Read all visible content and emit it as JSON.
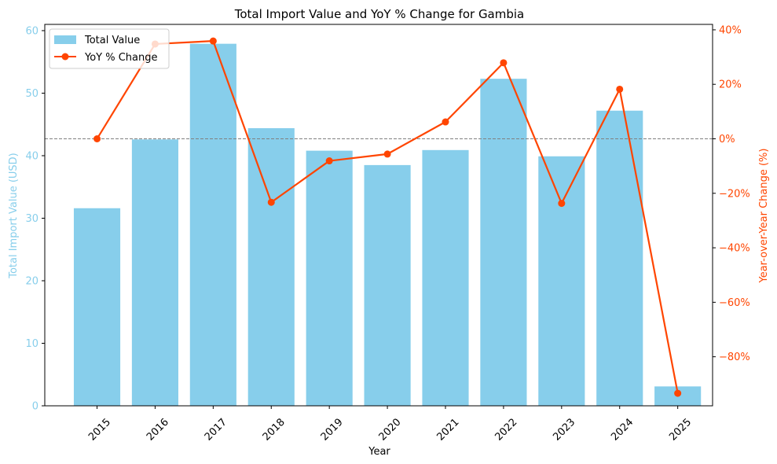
{
  "chart_data": {
    "type": "bar",
    "title": "Total Import Value and YoY % Change for Gambia",
    "xlabel": "Year",
    "ylabel_left": "Total Import Value (USD)",
    "ylabel_right": "Year-over-Year Change (%)",
    "categories": [
      "2015",
      "2016",
      "2017",
      "2018",
      "2019",
      "2020",
      "2021",
      "2022",
      "2023",
      "2024",
      "2025"
    ],
    "series": [
      {
        "name": "Total Value",
        "type": "bar",
        "axis": "left",
        "color": "#87CEEB",
        "values": [
          31.6,
          42.6,
          57.9,
          44.4,
          40.8,
          38.5,
          40.9,
          52.3,
          39.9,
          47.2,
          3.1
        ]
      },
      {
        "name": "YoY % Change",
        "type": "line",
        "axis": "right",
        "color": "#FF4500",
        "values": [
          0.0,
          34.8,
          35.9,
          -23.3,
          -8.1,
          -5.6,
          6.2,
          27.9,
          -23.7,
          18.2,
          -93.4
        ]
      }
    ],
    "ylim_left": [
      0,
      61
    ],
    "ylim_right": [
      -98,
      42
    ],
    "yticks_left": [
      0,
      10,
      20,
      30,
      40,
      50,
      60
    ],
    "yticks_right": [
      -80,
      -60,
      -40,
      -20,
      0,
      20,
      40
    ],
    "ytick_labels_right": [
      "−80%",
      "−60%",
      "−40%",
      "−20%",
      "0%",
      "20%",
      "40%"
    ],
    "reference_line": {
      "axis": "right",
      "value": 0,
      "style": "dashed",
      "color": "#808080"
    },
    "legend": {
      "position": "top-left",
      "entries": [
        "Total Value",
        "YoY % Change"
      ]
    },
    "grid": false,
    "left_axis_color": "#87CEEB",
    "right_axis_color": "#FF4500"
  }
}
